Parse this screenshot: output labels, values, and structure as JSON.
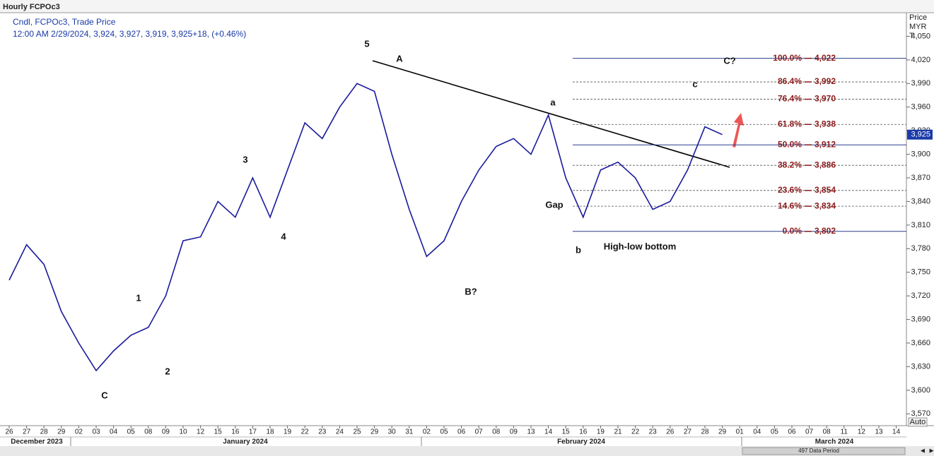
{
  "header": {
    "title": "Hourly FCPOc3",
    "line1": "Cndl, FCPOc3, Trade Price",
    "line2": "12:00 AM 2/29/2024, 3,924, 3,927, 3,919, 3,925+18, (+0.46%)"
  },
  "axis_header": {
    "line1": "Price",
    "line2": "MYR",
    "line3": "T"
  },
  "auto_button": "Auto",
  "data_period": "497 Data Period",
  "months": [
    "December 2023",
    "January 2024",
    "February 2024",
    "March 2024"
  ],
  "chart_data": {
    "type": "line",
    "categories": [
      "26",
      "27",
      "28",
      "29",
      "02",
      "03",
      "04",
      "05",
      "08",
      "09",
      "10",
      "12",
      "15",
      "16",
      "17",
      "18",
      "19",
      "22",
      "23",
      "24",
      "25",
      "29",
      "30",
      "31",
      "02",
      "05",
      "06",
      "07",
      "08",
      "09",
      "13",
      "14",
      "15",
      "16",
      "19",
      "21",
      "22",
      "23",
      "26",
      "27",
      "28",
      "29",
      "01",
      "04",
      "05",
      "06",
      "07",
      "08",
      "11",
      "12",
      "13",
      "14"
    ],
    "series": [
      {
        "name": "FCPOc3",
        "color": "#1a1a9c",
        "values": [
          3740,
          3785,
          3760,
          3700,
          3660,
          3625,
          3650,
          3670,
          3680,
          3720,
          3790,
          3795,
          3840,
          3820,
          3870,
          3820,
          3880,
          3940,
          3920,
          3960,
          3990,
          3980,
          3900,
          3830,
          3770,
          3790,
          3840,
          3880,
          3910,
          3920,
          3900,
          3950,
          3870,
          3820,
          3880,
          3890,
          3870,
          3830,
          3840,
          3880,
          3935,
          3925,
          null,
          null,
          null,
          null,
          null,
          null,
          null,
          null,
          null,
          null
        ]
      }
    ],
    "ylim": [
      3555,
      4080
    ],
    "yticks": [
      {
        "value": 3570,
        "label": "3,570"
      },
      {
        "value": 3600,
        "label": "3,600"
      },
      {
        "value": 3630,
        "label": "3,630"
      },
      {
        "value": 3660,
        "label": "3,660"
      },
      {
        "value": 3690,
        "label": "3,690"
      },
      {
        "value": 3720,
        "label": "3,720"
      },
      {
        "value": 3750,
        "label": "3,750"
      },
      {
        "value": 3780,
        "label": "3,780"
      },
      {
        "value": 3810,
        "label": "3,810"
      },
      {
        "value": 3840,
        "label": "3,840"
      },
      {
        "value": 3870,
        "label": "3,870"
      },
      {
        "value": 3900,
        "label": "3,900"
      },
      {
        "value": 3930,
        "label": "3,930"
      },
      {
        "value": 3960,
        "label": "3,960"
      },
      {
        "value": 3990,
        "label": "3,990"
      },
      {
        "value": 4020,
        "label": "4,020"
      },
      {
        "value": 4050,
        "label": "4,050"
      }
    ],
    "last_price": {
      "value": 3925,
      "label": "3,925"
    },
    "fib_levels": [
      {
        "ratio": {
          "value": 100.0,
          "label": "100.0%"
        },
        "price": {
          "value": 4022,
          "label": "4,022"
        }
      },
      {
        "ratio": {
          "value": 86.4,
          "label": "86.4%"
        },
        "price": {
          "value": 3992,
          "label": "3,992"
        }
      },
      {
        "ratio": {
          "value": 76.4,
          "label": "76.4%"
        },
        "price": {
          "value": 3970,
          "label": "3,970"
        }
      },
      {
        "ratio": {
          "value": 61.8,
          "label": "61.8%"
        },
        "price": {
          "value": 3938,
          "label": "3,938"
        }
      },
      {
        "ratio": {
          "value": 50.0,
          "label": "50.0%"
        },
        "price": {
          "value": 3912,
          "label": "3,912"
        }
      },
      {
        "ratio": {
          "value": 38.2,
          "label": "38.2%"
        },
        "price": {
          "value": 3886,
          "label": "3,886"
        }
      },
      {
        "ratio": {
          "value": 23.6,
          "label": "23.6%"
        },
        "price": {
          "value": 3854,
          "label": "3,854"
        }
      },
      {
        "ratio": {
          "value": 14.6,
          "label": "14.6%"
        },
        "price": {
          "value": 3834,
          "label": "3,834"
        }
      },
      {
        "ratio": {
          "value": 0.0,
          "label": "0.0%"
        },
        "price": {
          "value": 3802,
          "label": "3,802"
        }
      }
    ],
    "annotations": [
      "5",
      "A",
      "a",
      "c",
      "C?",
      "3",
      "4",
      "1",
      "2",
      "C",
      "B?",
      "Gap",
      "b",
      "High-low bottom"
    ]
  }
}
